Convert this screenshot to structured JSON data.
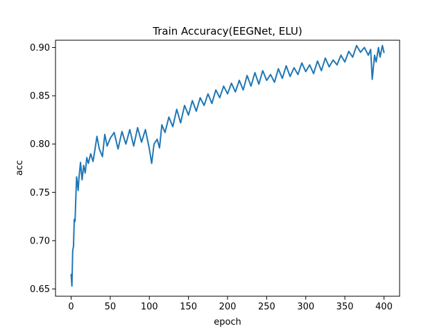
{
  "chart_data": {
    "type": "line",
    "title": "Train Accuracy(EEGNet, ELU)",
    "xlabel": "epoch",
    "ylabel": "acc",
    "xlim": [
      -20,
      420
    ],
    "ylim": [
      0.6425,
      0.9075
    ],
    "xticks": [
      0,
      50,
      100,
      150,
      200,
      250,
      300,
      350,
      400
    ],
    "yticks": [
      0.65,
      0.7,
      0.75,
      0.8,
      0.85,
      0.9
    ],
    "ytick_labels": [
      "0.65",
      "0.70",
      "0.75",
      "0.80",
      "0.85",
      "0.90"
    ],
    "grid": false,
    "legend": "none",
    "series": [
      {
        "color": "#1f77b4",
        "x": [
          0,
          1,
          2,
          3,
          4,
          5,
          6,
          7,
          8,
          9,
          10,
          12,
          14,
          16,
          18,
          20,
          22,
          25,
          28,
          30,
          33,
          36,
          40,
          43,
          46,
          50,
          55,
          60,
          65,
          70,
          75,
          80,
          85,
          90,
          95,
          100,
          103,
          106,
          110,
          113,
          116,
          120,
          125,
          130,
          135,
          140,
          145,
          150,
          155,
          160,
          165,
          170,
          175,
          180,
          185,
          190,
          195,
          200,
          205,
          210,
          215,
          220,
          225,
          230,
          235,
          240,
          245,
          250,
          255,
          260,
          265,
          270,
          275,
          280,
          285,
          290,
          295,
          300,
          305,
          310,
          315,
          320,
          325,
          330,
          335,
          340,
          345,
          350,
          355,
          360,
          365,
          370,
          375,
          380,
          383,
          385,
          388,
          390,
          393,
          395,
          398,
          400
        ],
        "values": [
          0.665,
          0.653,
          0.69,
          0.694,
          0.722,
          0.72,
          0.745,
          0.766,
          0.76,
          0.752,
          0.765,
          0.781,
          0.763,
          0.778,
          0.77,
          0.786,
          0.78,
          0.79,
          0.782,
          0.792,
          0.808,
          0.795,
          0.787,
          0.81,
          0.798,
          0.806,
          0.812,
          0.795,
          0.813,
          0.8,
          0.815,
          0.798,
          0.817,
          0.802,
          0.815,
          0.795,
          0.78,
          0.8,
          0.805,
          0.796,
          0.82,
          0.812,
          0.828,
          0.818,
          0.836,
          0.822,
          0.84,
          0.83,
          0.845,
          0.834,
          0.848,
          0.84,
          0.852,
          0.842,
          0.856,
          0.848,
          0.86,
          0.852,
          0.863,
          0.854,
          0.866,
          0.856,
          0.871,
          0.86,
          0.874,
          0.862,
          0.876,
          0.866,
          0.872,
          0.864,
          0.878,
          0.868,
          0.881,
          0.87,
          0.879,
          0.872,
          0.884,
          0.875,
          0.882,
          0.873,
          0.886,
          0.876,
          0.889,
          0.88,
          0.887,
          0.882,
          0.892,
          0.885,
          0.896,
          0.89,
          0.902,
          0.895,
          0.9,
          0.892,
          0.898,
          0.867,
          0.892,
          0.885,
          0.9,
          0.89,
          0.902,
          0.895
        ]
      }
    ]
  }
}
